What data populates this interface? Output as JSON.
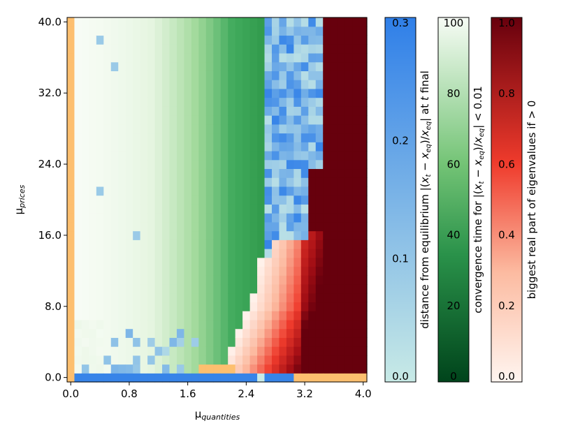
{
  "chart_data": {
    "type": "heatmap",
    "title": "",
    "xlabel": "μ_quantities",
    "ylabel": "μ_prices",
    "x_ticks": [
      "0.0",
      "0.8",
      "1.6",
      "2.4",
      "3.2",
      "4.0"
    ],
    "y_ticks": [
      "0.0",
      "8.0",
      "16.0",
      "24.0",
      "32.0",
      "40.0"
    ],
    "xlim": [
      0.0,
      4.0
    ],
    "ylim": [
      0.0,
      40.0
    ],
    "grid": {
      "nx": 41,
      "ny": 41,
      "cell_dx": 0.1,
      "cell_dy": 1.0
    },
    "regions": [
      {
        "name": "undefined (orange)",
        "where": "mu_quantities = 0, and mu_prices ≈ 0 at large mu_quantities",
        "color": "#fdbf6f"
      },
      {
        "name": "converged (green)",
        "where": "mu_quantities below ~2.7, shade = convergence time"
      },
      {
        "name": "not converged, stable (blue)",
        "where": "boundary band near mu_quantities ≈ 2.7–3.4",
        "value": "distance from equilibrium"
      },
      {
        "name": "unstable (red)",
        "where": "mu_quantities above ~2.5, low mu_prices; dark red for mu_quantities above ~3.4",
        "value": "biggest real part of eigenvalues"
      }
    ],
    "colorbars": [
      {
        "label": "distance from equilibrium |(x_t − x_eq)/x_eq| at t final",
        "ticks": [
          "0.0",
          "0.1",
          "0.2",
          "0.3"
        ],
        "range": [
          0.0,
          0.3
        ],
        "colors": [
          "#c8eae6",
          "#2f7fe8"
        ]
      },
      {
        "label": "convergence time for |(x_t − x_eq)/x_eq| < 0.01",
        "ticks": [
          "0",
          "20",
          "40",
          "60",
          "80",
          "100"
        ],
        "range": [
          0,
          100
        ],
        "colors": [
          "#00441b",
          "#41ab5d",
          "#f7fcf5"
        ]
      },
      {
        "label": "biggest real part of eigenvalues if > 0",
        "ticks": [
          "0.0",
          "0.2",
          "0.4",
          "0.6",
          "0.8",
          "1.0"
        ],
        "range": [
          0.0,
          1.0
        ],
        "colors": [
          "#fff5f0",
          "#fb6a4a",
          "#67000d"
        ]
      }
    ]
  }
}
